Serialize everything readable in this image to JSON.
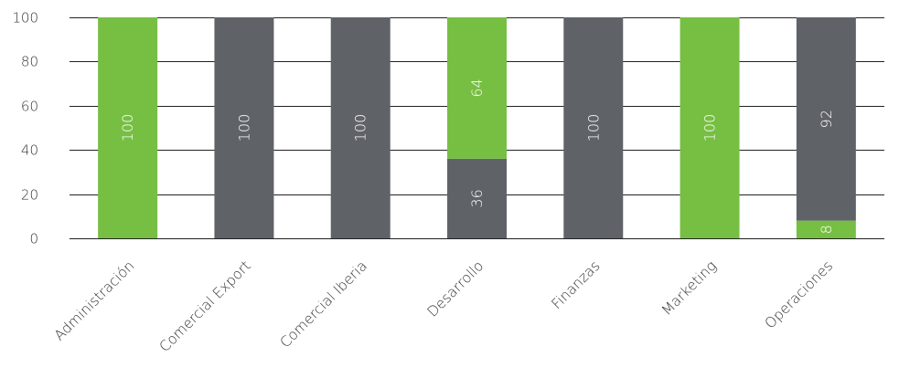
{
  "chart_data": {
    "type": "bar",
    "stacked": true,
    "orientation": "vertical",
    "title": "",
    "xlabel": "",
    "ylabel": "",
    "ylim": [
      0,
      100
    ],
    "yticks": [
      0,
      20,
      40,
      60,
      80,
      100
    ],
    "grid": true,
    "legend": "none",
    "categories": [
      "Administración",
      "Comercial Export",
      "Comercial Iberia",
      "Desarrollo",
      "Finanzas",
      "Marketing",
      "Operaciones"
    ],
    "segments": [
      [
        {
          "value": 100,
          "label": "100",
          "color": "#77bf43"
        }
      ],
      [
        {
          "value": 100,
          "label": "100",
          "color": "#5f6368"
        }
      ],
      [
        {
          "value": 100,
          "label": "100",
          "color": "#5f6368"
        }
      ],
      [
        {
          "value": 36,
          "label": "36",
          "color": "#5f6368"
        },
        {
          "value": 64,
          "label": "64",
          "color": "#77bf43"
        }
      ],
      [
        {
          "value": 100,
          "label": "100",
          "color": "#5f6368"
        }
      ],
      [
        {
          "value": 100,
          "label": "100",
          "color": "#77bf43"
        }
      ],
      [
        {
          "value": 8,
          "label": "8",
          "color": "#77bf43"
        },
        {
          "value": 92,
          "label": "92",
          "color": "#5f6368"
        }
      ]
    ],
    "colors": {
      "green": "#77bf43",
      "gray": "#5f6368",
      "grid": "#222222",
      "text": "#333333"
    }
  }
}
